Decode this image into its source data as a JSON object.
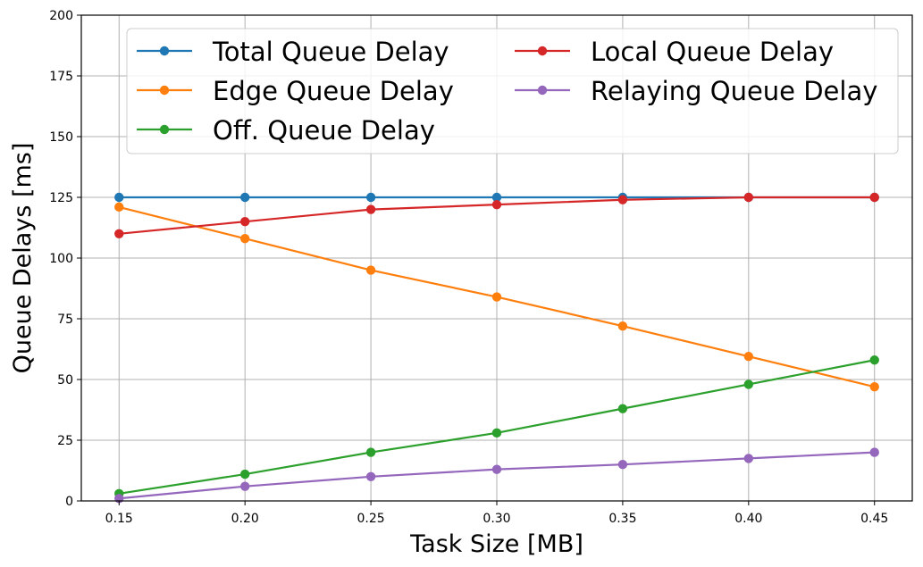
{
  "chart_data": {
    "type": "line",
    "title": "",
    "xlabel": "Task Size [MB]",
    "ylabel": "Queue Delays [ms]",
    "xlim": [
      0.135,
      0.465
    ],
    "ylim": [
      0,
      200
    ],
    "xticks": [
      "0.15",
      "0.20",
      "0.25",
      "0.30",
      "0.35",
      "0.40",
      "0.45"
    ],
    "yticks": [
      "0",
      "25",
      "50",
      "75",
      "100",
      "125",
      "150",
      "175",
      "200"
    ],
    "grid": true,
    "legend_position": "top-right",
    "x": [
      0.15,
      0.2,
      0.25,
      0.3,
      0.35,
      0.4,
      0.45
    ],
    "series": [
      {
        "name": "Total Queue Delay",
        "color": "#1f77b4",
        "values": [
          125,
          125,
          125,
          125,
          125,
          125,
          125
        ]
      },
      {
        "name": "Edge Queue Delay",
        "color": "#ff7f0e",
        "values": [
          121,
          108,
          95,
          84,
          72,
          59.5,
          47
        ]
      },
      {
        "name": "Off. Queue Delay",
        "color": "#2ca02c",
        "values": [
          3,
          11,
          20,
          28,
          38,
          48,
          58
        ]
      },
      {
        "name": "Local Queue Delay",
        "color": "#d62728",
        "values": [
          110,
          115,
          120,
          122,
          124,
          125,
          125
        ]
      },
      {
        "name": "Relaying Queue Delay",
        "color": "#9467bd",
        "values": [
          1,
          6,
          10,
          13,
          15,
          17.5,
          20
        ]
      }
    ]
  }
}
